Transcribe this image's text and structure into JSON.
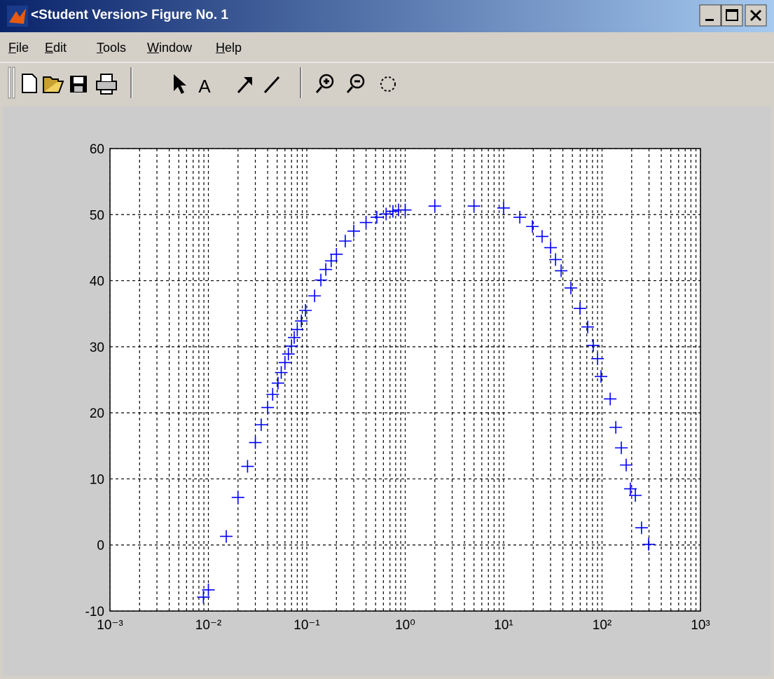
{
  "window": {
    "title": "<Student Version> Figure No. 1"
  },
  "menu": [
    "File",
    "Edit",
    "Tools",
    "Window",
    "Help"
  ],
  "toolbar": {
    "text_icon": "A"
  },
  "chart_data": {
    "type": "scatter",
    "marker": "+",
    "color": "#0000ff",
    "x": [
      0.0089,
      0.01,
      0.0152,
      0.02,
      0.025,
      0.03,
      0.0344,
      0.04,
      0.045,
      0.051,
      0.055,
      0.06,
      0.065,
      0.07,
      0.0745,
      0.08,
      0.088,
      0.097,
      0.12,
      0.139,
      0.156,
      0.177,
      0.2,
      0.246,
      0.3,
      0.4,
      0.515,
      0.64,
      0.75,
      0.855,
      1.0,
      2,
      5,
      10,
      14.6,
      19.6,
      24.6,
      30,
      33.7,
      38.4,
      48.2,
      59.7,
      71.5,
      81.5,
      90,
      97.6,
      121,
      138,
      157,
      176,
      194,
      218,
      252,
      297
    ],
    "values": [
      -7.9,
      -6.8,
      1.3,
      7.2,
      11.9,
      15.5,
      18.2,
      20.8,
      22.8,
      24.5,
      26.1,
      27.6,
      28.9,
      30.1,
      31.4,
      32.6,
      33.9,
      35.5,
      37.7,
      40.1,
      41.7,
      43.0,
      44.0,
      46.0,
      47.5,
      48.8,
      49.6,
      50.1,
      50.5,
      50.7,
      50.7,
      51.3,
      51.3,
      51.0,
      49.6,
      48.2,
      46.7,
      45.0,
      43.2,
      41.5,
      38.9,
      35.8,
      33.0,
      30.2,
      28.2,
      25.5,
      22.1,
      17.8,
      14.7,
      12.1,
      8.5,
      7.5,
      2.6,
      0.1
    ],
    "xscale": "log",
    "xlim": [
      0.001,
      1000
    ],
    "xticks": [
      {
        "value": 0.001,
        "label": "10⁻³"
      },
      {
        "value": 0.01,
        "label": "10⁻²"
      },
      {
        "value": 0.1,
        "label": "10⁻¹"
      },
      {
        "value": 1,
        "label": "10⁰"
      },
      {
        "value": 10,
        "label": "10¹"
      },
      {
        "value": 100,
        "label": "10²"
      },
      {
        "value": 1000,
        "label": "10³"
      }
    ],
    "xminorticks": [
      0.002,
      0.003,
      0.004,
      0.005,
      0.006,
      0.007,
      0.008,
      0.009,
      0.02,
      0.03,
      0.04,
      0.05,
      0.06,
      0.07,
      0.08,
      0.09,
      0.2,
      0.3,
      0.4,
      0.5,
      0.6,
      0.7,
      0.8,
      0.9,
      2,
      3,
      4,
      5,
      6,
      7,
      8,
      9,
      20,
      30,
      40,
      50,
      60,
      70,
      80,
      90,
      200,
      300,
      400,
      500,
      600,
      700,
      800,
      900
    ],
    "ylim": [
      -10,
      60
    ],
    "yticks": [
      -10,
      0,
      10,
      20,
      30,
      40,
      50,
      60
    ],
    "grid": true
  }
}
